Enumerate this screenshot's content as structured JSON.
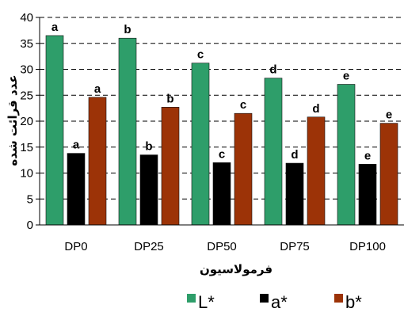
{
  "chart_data": {
    "type": "bar",
    "categories": [
      "DP0",
      "DP25",
      "DP50",
      "DP75",
      "DP100"
    ],
    "series": [
      {
        "name": "L*",
        "color": "#2e9e6a",
        "values": [
          36.5,
          36.0,
          31.2,
          28.3,
          27.1
        ],
        "letters": [
          "a",
          "b",
          "c",
          "d",
          "e"
        ]
      },
      {
        "name": "a*",
        "color": "#000000",
        "values": [
          13.8,
          13.5,
          12.0,
          11.9,
          11.7
        ],
        "letters": [
          "a",
          "b",
          "c",
          "d",
          "e"
        ]
      },
      {
        "name": "b*",
        "color": "#9c3307",
        "values": [
          24.6,
          22.7,
          21.5,
          20.8,
          19.6
        ],
        "letters": [
          "a",
          "b",
          "c",
          "d",
          "e"
        ]
      }
    ],
    "xlabel": "فرمولاسیون",
    "ylabel": "عدد قرائت شده",
    "ylim": [
      0,
      40
    ],
    "ytick_step": 5,
    "grid": "horizontal-dashed",
    "legend_position": "bottom"
  }
}
